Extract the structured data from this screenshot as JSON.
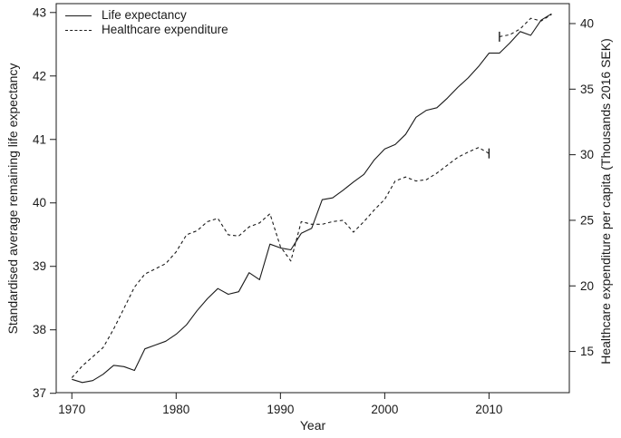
{
  "figure": {
    "background": "#ffffff",
    "line_color": "#1a1a1a"
  },
  "legend": {
    "entries": [
      {
        "label": "Life expectancy",
        "style": "solid"
      },
      {
        "label": "Healthcare expenditure",
        "style": "dashed"
      }
    ]
  },
  "chart_data": {
    "type": "line",
    "title": "",
    "grid": false,
    "legend_position": "top-left",
    "x": {
      "label": "Year",
      "ticks": [
        1970,
        1980,
        1990,
        2000,
        2010
      ],
      "range": [
        1968.5,
        2017.7
      ]
    },
    "y_left": {
      "label": "Standardised average remaining life expectancy",
      "ticks": [
        37,
        38,
        39,
        40,
        41,
        42,
        43
      ],
      "range": [
        37.01,
        43.14
      ]
    },
    "y_right": {
      "label": "Healthcare expenditure per capita (Thousands 2016 SEK)",
      "ticks": [
        15,
        20,
        25,
        30,
        35,
        40
      ],
      "range": [
        11.86,
        41.52
      ]
    },
    "series": [
      {
        "name": "Life expectancy",
        "axis": "left",
        "style": "solid",
        "segments": [
          {
            "x_start": 1970,
            "values": [
              37.22,
              37.17,
              37.2,
              37.3,
              37.44,
              37.42,
              37.36,
              37.7,
              37.76,
              37.82,
              37.93,
              38.08,
              38.3,
              38.49,
              38.65,
              38.56,
              38.6,
              38.9,
              38.79,
              39.35,
              39.29,
              39.26,
              39.52,
              39.6,
              40.05,
              40.08,
              40.2,
              40.33,
              40.45,
              40.68,
              40.85,
              40.92,
              41.08,
              41.35,
              41.46,
              41.5,
              41.65,
              41.82,
              41.97,
              42.15,
              42.36,
              42.36,
              42.52,
              42.7,
              42.64,
              42.88,
              42.98
            ]
          }
        ],
        "break_markers": []
      },
      {
        "name": "Healthcare expenditure",
        "axis": "right",
        "style": "dashed",
        "segments": [
          {
            "x_start": 1970,
            "values": [
              13.0,
              13.9,
              14.6,
              15.3,
              16.7,
              18.3,
              19.9,
              20.9,
              21.3,
              21.7,
              22.6,
              23.9,
              24.2,
              24.9,
              25.15,
              23.9,
              23.8,
              24.5,
              24.8,
              25.5,
              23.0,
              21.9,
              24.9,
              24.7,
              24.7,
              24.9,
              25.0,
              24.1,
              24.9,
              25.8,
              26.6,
              28.0,
              28.3,
              28.0,
              28.1,
              28.6,
              29.2,
              29.8,
              30.2,
              30.55,
              30.1
            ]
          },
          {
            "x_start": 2011,
            "values": [
              39.0,
              39.15,
              39.6,
              40.4,
              40.2,
              40.7
            ]
          }
        ],
        "break_markers": [
          {
            "x": 2010,
            "value": 30.1
          },
          {
            "x": 2011,
            "value": 39.0
          }
        ]
      }
    ]
  }
}
